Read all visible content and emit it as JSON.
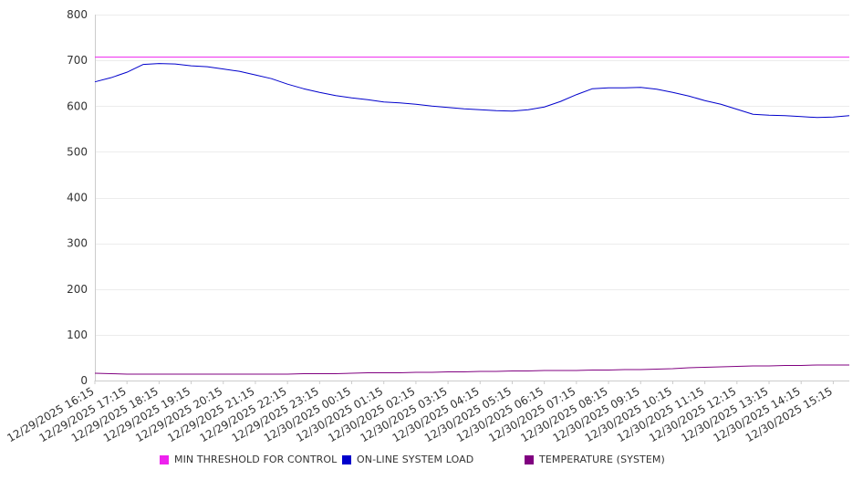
{
  "chart_data": {
    "type": "line",
    "ylim": [
      0,
      800
    ],
    "y_ticks": [
      0,
      100,
      200,
      300,
      400,
      500,
      600,
      700,
      800
    ],
    "x_tick_labels": [
      "12/29/2025 16:15",
      "12/29/2025 17:15",
      "12/29/2025 18:15",
      "12/29/2025 19:15",
      "12/29/2025 20:15",
      "12/29/2025 21:15",
      "12/29/2025 22:15",
      "12/29/2025 23:15",
      "12/30/2025 00:15",
      "12/30/2025 01:15",
      "12/30/2025 02:15",
      "12/30/2025 03:15",
      "12/30/2025 04:15",
      "12/30/2025 05:15",
      "12/30/2025 06:15",
      "12/30/2025 07:15",
      "12/30/2025 08:15",
      "12/30/2025 09:15",
      "12/30/2025 10:15",
      "12/30/2025 11:15",
      "12/30/2025 12:15",
      "12/30/2025 13:15",
      "12/30/2025 14:15",
      "12/30/2025 15:15"
    ],
    "x": [
      "12/29/2025 16:15",
      "12/29/2025 16:45",
      "12/29/2025 17:15",
      "12/29/2025 17:45",
      "12/29/2025 18:15",
      "12/29/2025 18:45",
      "12/29/2025 19:15",
      "12/29/2025 19:45",
      "12/29/2025 20:15",
      "12/29/2025 20:45",
      "12/29/2025 21:15",
      "12/29/2025 21:45",
      "12/29/2025 22:15",
      "12/29/2025 22:45",
      "12/29/2025 23:15",
      "12/29/2025 23:45",
      "12/30/2025 00:15",
      "12/30/2025 00:45",
      "12/30/2025 01:15",
      "12/30/2025 01:45",
      "12/30/2025 02:15",
      "12/30/2025 02:45",
      "12/30/2025 03:15",
      "12/30/2025 03:45",
      "12/30/2025 04:15",
      "12/30/2025 04:45",
      "12/30/2025 05:15",
      "12/30/2025 05:45",
      "12/30/2025 06:15",
      "12/30/2025 06:45",
      "12/30/2025 07:15",
      "12/30/2025 07:45",
      "12/30/2025 08:15",
      "12/30/2025 08:45",
      "12/30/2025 09:15",
      "12/30/2025 09:45",
      "12/30/2025 10:15",
      "12/30/2025 10:45",
      "12/30/2025 11:15",
      "12/30/2025 11:45",
      "12/30/2025 12:15",
      "12/30/2025 12:45",
      "12/30/2025 13:15",
      "12/30/2025 13:45",
      "12/30/2025 14:15",
      "12/30/2025 14:45",
      "12/30/2025 15:15",
      "12/30/2025 15:45"
    ],
    "series": [
      {
        "name": "MIN THRESHOLD FOR CONTROL",
        "color": "#ee22ee",
        "values": [
          707,
          707,
          707,
          707,
          707,
          707,
          707,
          707,
          707,
          707,
          707,
          707,
          707,
          707,
          707,
          707,
          707,
          707,
          707,
          707,
          707,
          707,
          707,
          707,
          707,
          707,
          707,
          707,
          707,
          707,
          707,
          707,
          707,
          707,
          707,
          707,
          707,
          707,
          707,
          707,
          707,
          707,
          707,
          707,
          707,
          707,
          707,
          707
        ]
      },
      {
        "name": "ON-LINE SYSTEM LOAD",
        "color": "#0000cc",
        "values": [
          653,
          662,
          674,
          691,
          693,
          692,
          688,
          686,
          681,
          676,
          668,
          660,
          648,
          638,
          630,
          623,
          618,
          614,
          609,
          607,
          604,
          600,
          597,
          594,
          592,
          590,
          589,
          592,
          598,
          610,
          625,
          638,
          640,
          640,
          641,
          637,
          630,
          622,
          612,
          604,
          593,
          582,
          580,
          579,
          577,
          575,
          576,
          579
        ]
      },
      {
        "name": "TEMPERATURE (SYSTEM)",
        "color": "#800080",
        "values": [
          16,
          15,
          14,
          14,
          14,
          14,
          14,
          14,
          14,
          14,
          14,
          14,
          14,
          15,
          15,
          15,
          16,
          17,
          17,
          17,
          18,
          18,
          19,
          19,
          20,
          20,
          21,
          21,
          22,
          22,
          22,
          23,
          23,
          24,
          24,
          25,
          26,
          28,
          29,
          30,
          31,
          32,
          32,
          33,
          33,
          34,
          34,
          34
        ]
      }
    ]
  }
}
